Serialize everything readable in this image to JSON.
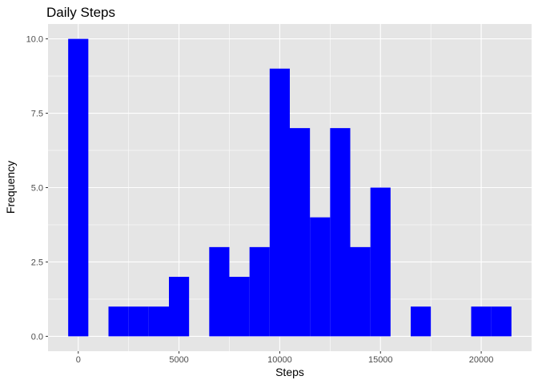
{
  "chart_data": {
    "type": "bar",
    "title": "Daily Steps",
    "xlabel": "Steps",
    "ylabel": "Frequency",
    "bin_width": 1000,
    "bins": [
      {
        "x0": -500,
        "x1": 500,
        "count": 10
      },
      {
        "x0": 1500,
        "x1": 2500,
        "count": 1
      },
      {
        "x0": 2500,
        "x1": 3500,
        "count": 1
      },
      {
        "x0": 3500,
        "x1": 4500,
        "count": 1
      },
      {
        "x0": 4500,
        "x1": 5500,
        "count": 2
      },
      {
        "x0": 6500,
        "x1": 7500,
        "count": 3
      },
      {
        "x0": 7500,
        "x1": 8500,
        "count": 2
      },
      {
        "x0": 8500,
        "x1": 9500,
        "count": 3
      },
      {
        "x0": 9500,
        "x1": 10500,
        "count": 9
      },
      {
        "x0": 10500,
        "x1": 11500,
        "count": 7
      },
      {
        "x0": 11500,
        "x1": 12500,
        "count": 4
      },
      {
        "x0": 12500,
        "x1": 13500,
        "count": 7
      },
      {
        "x0": 13500,
        "x1": 14500,
        "count": 3
      },
      {
        "x0": 14500,
        "x1": 15500,
        "count": 5
      },
      {
        "x0": 16500,
        "x1": 17500,
        "count": 1
      },
      {
        "x0": 19500,
        "x1": 20500,
        "count": 1
      },
      {
        "x0": 20500,
        "x1": 21500,
        "count": 1
      }
    ],
    "xlim": [
      -1500,
      22500
    ],
    "ylim": [
      -0.5,
      10.5
    ],
    "x_ticks": [
      0,
      5000,
      10000,
      15000,
      20000
    ],
    "x_tick_labels": [
      "0",
      "5000",
      "10000",
      "15000",
      "20000"
    ],
    "y_ticks": [
      0,
      2.5,
      5,
      7.5,
      10
    ],
    "y_tick_labels": [
      "0.0",
      "2.5",
      "5.0",
      "7.5",
      "10.0"
    ],
    "grid": true,
    "bar_color": "#0000ff",
    "panel_color": "#e5e5e5",
    "grid_color": "#ffffff"
  }
}
